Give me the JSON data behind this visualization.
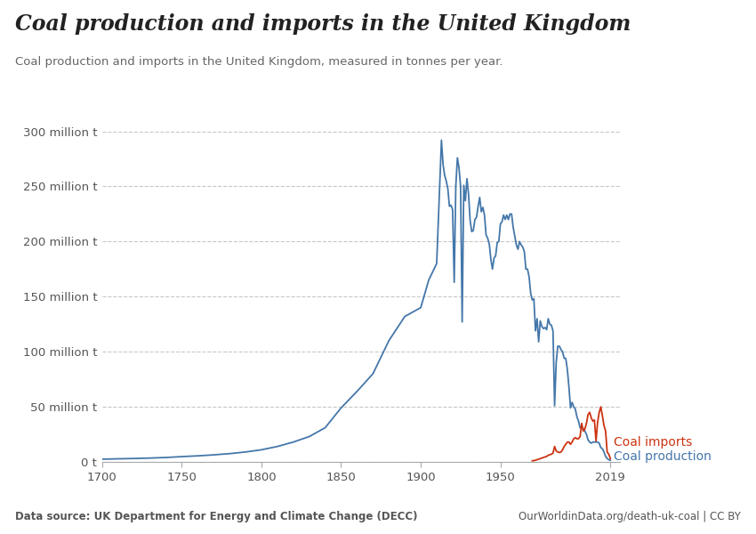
{
  "title": "Coal production and imports in the United Kingdom",
  "subtitle": "Coal production and imports in the United Kingdom, measured in tonnes per year.",
  "data_source": "Data source: UK Department for Energy and Climate Change (DECC)",
  "url": "OurWorldinData.org/death-uk-coal | CC BY",
  "ylabel_ticks": [
    "0 t",
    "50 million t",
    "100 million t",
    "150 million t",
    "200 million t",
    "250 million t",
    "300 million t"
  ],
  "ytick_values": [
    0,
    50000000,
    100000000,
    150000000,
    200000000,
    250000000,
    300000000
  ],
  "xlim": [
    1700,
    2025
  ],
  "ylim": [
    0,
    315000000
  ],
  "production_color": "#4477aa",
  "imports_color": "#cc3311",
  "background_color": "#ffffff",
  "grid_color": "#c8c8c8",
  "logo_bg": "#1a3a5c",
  "logo_red": "#cc0000",
  "xticks": [
    1700,
    1750,
    1800,
    1850,
    1900,
    1950,
    2019
  ],
  "legend_imports": "Coal imports",
  "legend_production": "Coal production",
  "production_data": [
    [
      1700,
      2500000
    ],
    [
      1710,
      2800000
    ],
    [
      1720,
      3100000
    ],
    [
      1730,
      3500000
    ],
    [
      1740,
      4000000
    ],
    [
      1750,
      4800000
    ],
    [
      1760,
      5500000
    ],
    [
      1770,
      6400000
    ],
    [
      1780,
      7500000
    ],
    [
      1790,
      9000000
    ],
    [
      1800,
      11000000
    ],
    [
      1810,
      14000000
    ],
    [
      1820,
      18000000
    ],
    [
      1830,
      23000000
    ],
    [
      1840,
      31000000
    ],
    [
      1850,
      49000000
    ],
    [
      1860,
      64000000
    ],
    [
      1870,
      80000000
    ],
    [
      1880,
      110000000
    ],
    [
      1890,
      132000000
    ],
    [
      1900,
      140000000
    ],
    [
      1905,
      165000000
    ],
    [
      1910,
      180000000
    ],
    [
      1913,
      292000000
    ],
    [
      1914,
      270000000
    ],
    [
      1915,
      260000000
    ],
    [
      1916,
      255000000
    ],
    [
      1917,
      248000000
    ],
    [
      1918,
      232000000
    ],
    [
      1919,
      233000000
    ],
    [
      1920,
      229000000
    ],
    [
      1921,
      163000000
    ],
    [
      1922,
      250000000
    ],
    [
      1923,
      276000000
    ],
    [
      1924,
      267000000
    ],
    [
      1925,
      250000000
    ],
    [
      1926,
      127000000
    ],
    [
      1927,
      251000000
    ],
    [
      1928,
      237000000
    ],
    [
      1929,
      257000000
    ],
    [
      1930,
      243000000
    ],
    [
      1931,
      219000000
    ],
    [
      1932,
      209000000
    ],
    [
      1933,
      210000000
    ],
    [
      1934,
      220000000
    ],
    [
      1935,
      222000000
    ],
    [
      1936,
      232000000
    ],
    [
      1937,
      240000000
    ],
    [
      1938,
      227000000
    ],
    [
      1939,
      231000000
    ],
    [
      1940,
      224000000
    ],
    [
      1941,
      206000000
    ],
    [
      1942,
      203000000
    ],
    [
      1943,
      198000000
    ],
    [
      1944,
      184000000
    ],
    [
      1945,
      175000000
    ],
    [
      1946,
      185000000
    ],
    [
      1947,
      187000000
    ],
    [
      1948,
      199000000
    ],
    [
      1949,
      200000000
    ],
    [
      1950,
      216000000
    ],
    [
      1951,
      218000000
    ],
    [
      1952,
      224000000
    ],
    [
      1953,
      220000000
    ],
    [
      1954,
      224000000
    ],
    [
      1955,
      220000000
    ],
    [
      1956,
      225000000
    ],
    [
      1957,
      225000000
    ],
    [
      1958,
      213000000
    ],
    [
      1959,
      205000000
    ],
    [
      1960,
      197000000
    ],
    [
      1961,
      193000000
    ],
    [
      1962,
      200000000
    ],
    [
      1963,
      197000000
    ],
    [
      1964,
      195000000
    ],
    [
      1965,
      191000000
    ],
    [
      1966,
      175000000
    ],
    [
      1967,
      175000000
    ],
    [
      1968,
      168000000
    ],
    [
      1969,
      153000000
    ],
    [
      1970,
      147000000
    ],
    [
      1971,
      148000000
    ],
    [
      1972,
      119000000
    ],
    [
      1973,
      130000000
    ],
    [
      1974,
      109000000
    ],
    [
      1975,
      128000000
    ],
    [
      1976,
      123000000
    ],
    [
      1977,
      121000000
    ],
    [
      1978,
      122000000
    ],
    [
      1979,
      120000000
    ],
    [
      1980,
      130000000
    ],
    [
      1981,
      125000000
    ],
    [
      1982,
      124000000
    ],
    [
      1983,
      119000000
    ],
    [
      1984,
      51000000
    ],
    [
      1985,
      90000000
    ],
    [
      1986,
      105000000
    ],
    [
      1987,
      105000000
    ],
    [
      1988,
      102000000
    ],
    [
      1989,
      100000000
    ],
    [
      1990,
      94000000
    ],
    [
      1991,
      94000000
    ],
    [
      1992,
      84000000
    ],
    [
      1993,
      68000000
    ],
    [
      1994,
      49000000
    ],
    [
      1995,
      54000000
    ],
    [
      1996,
      50000000
    ],
    [
      1997,
      48000000
    ],
    [
      1998,
      41000000
    ],
    [
      1999,
      37000000
    ],
    [
      2000,
      31000000
    ],
    [
      2001,
      32000000
    ],
    [
      2002,
      30000000
    ],
    [
      2003,
      28000000
    ],
    [
      2004,
      25000000
    ],
    [
      2005,
      20000000
    ],
    [
      2006,
      18000000
    ],
    [
      2007,
      17000000
    ],
    [
      2008,
      18000000
    ],
    [
      2009,
      18000000
    ],
    [
      2010,
      18000000
    ],
    [
      2011,
      18000000
    ],
    [
      2012,
      17000000
    ],
    [
      2013,
      13000000
    ],
    [
      2014,
      12000000
    ],
    [
      2015,
      9000000
    ],
    [
      2016,
      5000000
    ],
    [
      2017,
      3000000
    ],
    [
      2018,
      2000000
    ],
    [
      2019,
      1500000
    ]
  ],
  "imports_data": [
    [
      1970,
      1000000
    ],
    [
      1971,
      1200000
    ],
    [
      1972,
      1500000
    ],
    [
      1973,
      2000000
    ],
    [
      1974,
      2500000
    ],
    [
      1975,
      3000000
    ],
    [
      1976,
      3500000
    ],
    [
      1977,
      4000000
    ],
    [
      1978,
      4500000
    ],
    [
      1979,
      5000000
    ],
    [
      1980,
      6000000
    ],
    [
      1981,
      6500000
    ],
    [
      1982,
      7000000
    ],
    [
      1983,
      8000000
    ],
    [
      1984,
      14000000
    ],
    [
      1985,
      10000000
    ],
    [
      1986,
      9000000
    ],
    [
      1987,
      8500000
    ],
    [
      1988,
      9000000
    ],
    [
      1989,
      11000000
    ],
    [
      1990,
      14000000
    ],
    [
      1991,
      16000000
    ],
    [
      1992,
      18000000
    ],
    [
      1993,
      18000000
    ],
    [
      1994,
      16000000
    ],
    [
      1995,
      18000000
    ],
    [
      1996,
      21000000
    ],
    [
      1997,
      22000000
    ],
    [
      1998,
      21000000
    ],
    [
      1999,
      21000000
    ],
    [
      2000,
      23000000
    ],
    [
      2001,
      35000000
    ],
    [
      2002,
      28000000
    ],
    [
      2003,
      30000000
    ],
    [
      2004,
      35000000
    ],
    [
      2005,
      43000000
    ],
    [
      2006,
      45000000
    ],
    [
      2007,
      40000000
    ],
    [
      2008,
      37000000
    ],
    [
      2009,
      38000000
    ],
    [
      2010,
      19000000
    ],
    [
      2011,
      36000000
    ],
    [
      2012,
      45000000
    ],
    [
      2013,
      50000000
    ],
    [
      2014,
      42000000
    ],
    [
      2015,
      33000000
    ],
    [
      2016,
      28000000
    ],
    [
      2017,
      9000000
    ],
    [
      2018,
      7000000
    ],
    [
      2019,
      3000000
    ]
  ]
}
